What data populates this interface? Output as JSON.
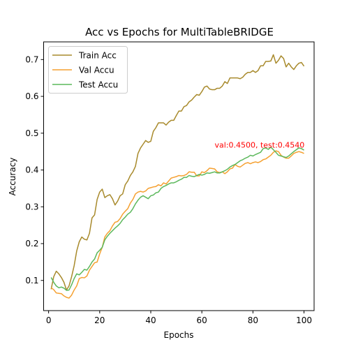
{
  "chart_data": {
    "type": "line",
    "title": "Acc vs Epochs for MultiTableBRIDGE",
    "xlabel": "Epochs",
    "ylabel": "Accuracy",
    "xlim": [
      -1.95,
      103.95
    ],
    "ylim": [
      0.018,
      0.748
    ],
    "xticks": [
      0,
      20,
      40,
      60,
      80,
      100
    ],
    "yticks": [
      0.1,
      0.2,
      0.3,
      0.4,
      0.5,
      0.6,
      0.7
    ],
    "grid": false,
    "legend_position": "upper-left",
    "annotation": {
      "text": "val:0.4500, test:0.4540",
      "x": 65,
      "y": 0.4605,
      "color": "#ff0000"
    },
    "series": [
      {
        "name": "Train Acc",
        "color": "#a88a2c",
        "x": [
          1,
          2,
          3,
          4,
          5,
          6,
          7,
          8,
          9,
          10,
          11,
          12,
          13,
          14,
          15,
          16,
          17,
          18,
          19,
          20,
          21,
          22,
          23,
          24,
          25,
          26,
          27,
          28,
          29,
          30,
          31,
          32,
          33,
          34,
          35,
          36,
          37,
          38,
          39,
          40,
          41,
          42,
          43,
          44,
          45,
          46,
          47,
          48,
          49,
          50,
          51,
          52,
          53,
          54,
          55,
          56,
          57,
          58,
          59,
          60,
          61,
          62,
          63,
          64,
          65,
          66,
          67,
          68,
          69,
          70,
          71,
          72,
          73,
          74,
          75,
          76,
          77,
          78,
          79,
          80,
          81,
          82,
          83,
          84,
          85,
          86,
          87,
          88,
          89,
          90,
          91,
          92,
          93,
          94,
          95,
          96,
          97,
          98,
          99,
          100
        ],
        "values": [
          0.076,
          0.11,
          0.125,
          0.118,
          0.108,
          0.095,
          0.074,
          0.085,
          0.11,
          0.14,
          0.18,
          0.205,
          0.218,
          0.212,
          0.21,
          0.228,
          0.27,
          0.278,
          0.32,
          0.34,
          0.348,
          0.325,
          0.33,
          0.333,
          0.322,
          0.305,
          0.315,
          0.33,
          0.335,
          0.36,
          0.37,
          0.385,
          0.395,
          0.41,
          0.445,
          0.46,
          0.47,
          0.48,
          0.475,
          0.478,
          0.505,
          0.515,
          0.528,
          0.528,
          0.528,
          0.522,
          0.53,
          0.535,
          0.535,
          0.548,
          0.56,
          0.56,
          0.572,
          0.575,
          0.585,
          0.59,
          0.598,
          0.605,
          0.603,
          0.613,
          0.625,
          0.628,
          0.62,
          0.618,
          0.618,
          0.622,
          0.622,
          0.628,
          0.64,
          0.635,
          0.65,
          0.65,
          0.65,
          0.65,
          0.648,
          0.652,
          0.66,
          0.665,
          0.665,
          0.67,
          0.665,
          0.67,
          0.683,
          0.683,
          0.695,
          0.695,
          0.696,
          0.713,
          0.69,
          0.698,
          0.71,
          0.703,
          0.68,
          0.69,
          0.68,
          0.673,
          0.683,
          0.69,
          0.692,
          0.682
        ]
      },
      {
        "name": "Val Accu",
        "color": "#f5a030",
        "x": [
          1,
          2,
          3,
          4,
          5,
          6,
          7,
          8,
          9,
          10,
          11,
          12,
          13,
          14,
          15,
          16,
          17,
          18,
          19,
          20,
          21,
          22,
          23,
          24,
          25,
          26,
          27,
          28,
          29,
          30,
          31,
          32,
          33,
          34,
          35,
          36,
          37,
          38,
          39,
          40,
          41,
          42,
          43,
          44,
          45,
          46,
          47,
          48,
          49,
          50,
          51,
          52,
          53,
          54,
          55,
          56,
          57,
          58,
          59,
          60,
          61,
          62,
          63,
          64,
          65,
          66,
          67,
          68,
          69,
          70,
          71,
          72,
          73,
          74,
          75,
          76,
          77,
          78,
          79,
          80,
          81,
          82,
          83,
          84,
          85,
          86,
          87,
          88,
          89,
          90,
          91,
          92,
          93,
          94,
          95,
          96,
          97,
          98,
          99,
          100
        ],
        "values": [
          0.08,
          0.075,
          0.066,
          0.065,
          0.064,
          0.058,
          0.054,
          0.052,
          0.06,
          0.074,
          0.085,
          0.105,
          0.108,
          0.107,
          0.112,
          0.128,
          0.138,
          0.148,
          0.15,
          0.172,
          0.19,
          0.218,
          0.228,
          0.235,
          0.248,
          0.258,
          0.26,
          0.268,
          0.28,
          0.288,
          0.295,
          0.31,
          0.32,
          0.335,
          0.34,
          0.342,
          0.34,
          0.343,
          0.35,
          0.352,
          0.354,
          0.355,
          0.36,
          0.357,
          0.365,
          0.362,
          0.37,
          0.378,
          0.38,
          0.382,
          0.385,
          0.384,
          0.385,
          0.388,
          0.395,
          0.394,
          0.394,
          0.384,
          0.384,
          0.395,
          0.393,
          0.398,
          0.405,
          0.404,
          0.403,
          0.395,
          0.393,
          0.395,
          0.39,
          0.395,
          0.403,
          0.405,
          0.415,
          0.41,
          0.408,
          0.413,
          0.418,
          0.42,
          0.417,
          0.42,
          0.422,
          0.42,
          0.423,
          0.428,
          0.43,
          0.435,
          0.44,
          0.448,
          0.452,
          0.45,
          0.44,
          0.435,
          0.432,
          0.432,
          0.438,
          0.445,
          0.448,
          0.45,
          0.448,
          0.445
        ]
      },
      {
        "name": "Test Accu",
        "color": "#5cb85c",
        "x": [
          1,
          2,
          3,
          4,
          5,
          6,
          7,
          8,
          9,
          10,
          11,
          12,
          13,
          14,
          15,
          16,
          17,
          18,
          19,
          20,
          21,
          22,
          23,
          24,
          25,
          26,
          27,
          28,
          29,
          30,
          31,
          32,
          33,
          34,
          35,
          36,
          37,
          38,
          39,
          40,
          41,
          42,
          43,
          44,
          45,
          46,
          47,
          48,
          49,
          50,
          51,
          52,
          53,
          54,
          55,
          56,
          57,
          58,
          59,
          60,
          61,
          62,
          63,
          64,
          65,
          66,
          67,
          68,
          69,
          70,
          71,
          72,
          73,
          74,
          75,
          76,
          77,
          78,
          79,
          80,
          81,
          82,
          83,
          84,
          85,
          86,
          87,
          88,
          89,
          90,
          91,
          92,
          93,
          94,
          95,
          96,
          97,
          98,
          99,
          100
        ],
        "values": [
          0.108,
          0.095,
          0.085,
          0.08,
          0.082,
          0.079,
          0.073,
          0.074,
          0.088,
          0.105,
          0.118,
          0.115,
          0.122,
          0.13,
          0.128,
          0.138,
          0.15,
          0.158,
          0.175,
          0.182,
          0.19,
          0.21,
          0.22,
          0.228,
          0.235,
          0.242,
          0.248,
          0.255,
          0.265,
          0.272,
          0.28,
          0.285,
          0.295,
          0.308,
          0.318,
          0.326,
          0.33,
          0.326,
          0.322,
          0.33,
          0.332,
          0.338,
          0.34,
          0.35,
          0.355,
          0.358,
          0.362,
          0.365,
          0.365,
          0.368,
          0.372,
          0.375,
          0.38,
          0.38,
          0.385,
          0.383,
          0.382,
          0.385,
          0.388,
          0.386,
          0.388,
          0.392,
          0.391,
          0.393,
          0.395,
          0.392,
          0.392,
          0.395,
          0.398,
          0.402,
          0.408,
          0.412,
          0.415,
          0.42,
          0.425,
          0.428,
          0.432,
          0.435,
          0.44,
          0.438,
          0.442,
          0.445,
          0.448,
          0.458,
          0.46,
          0.456,
          0.462,
          0.455,
          0.448,
          0.44,
          0.438,
          0.436,
          0.434,
          0.438,
          0.444,
          0.45,
          0.455,
          0.46,
          0.458,
          0.454
        ]
      }
    ]
  }
}
